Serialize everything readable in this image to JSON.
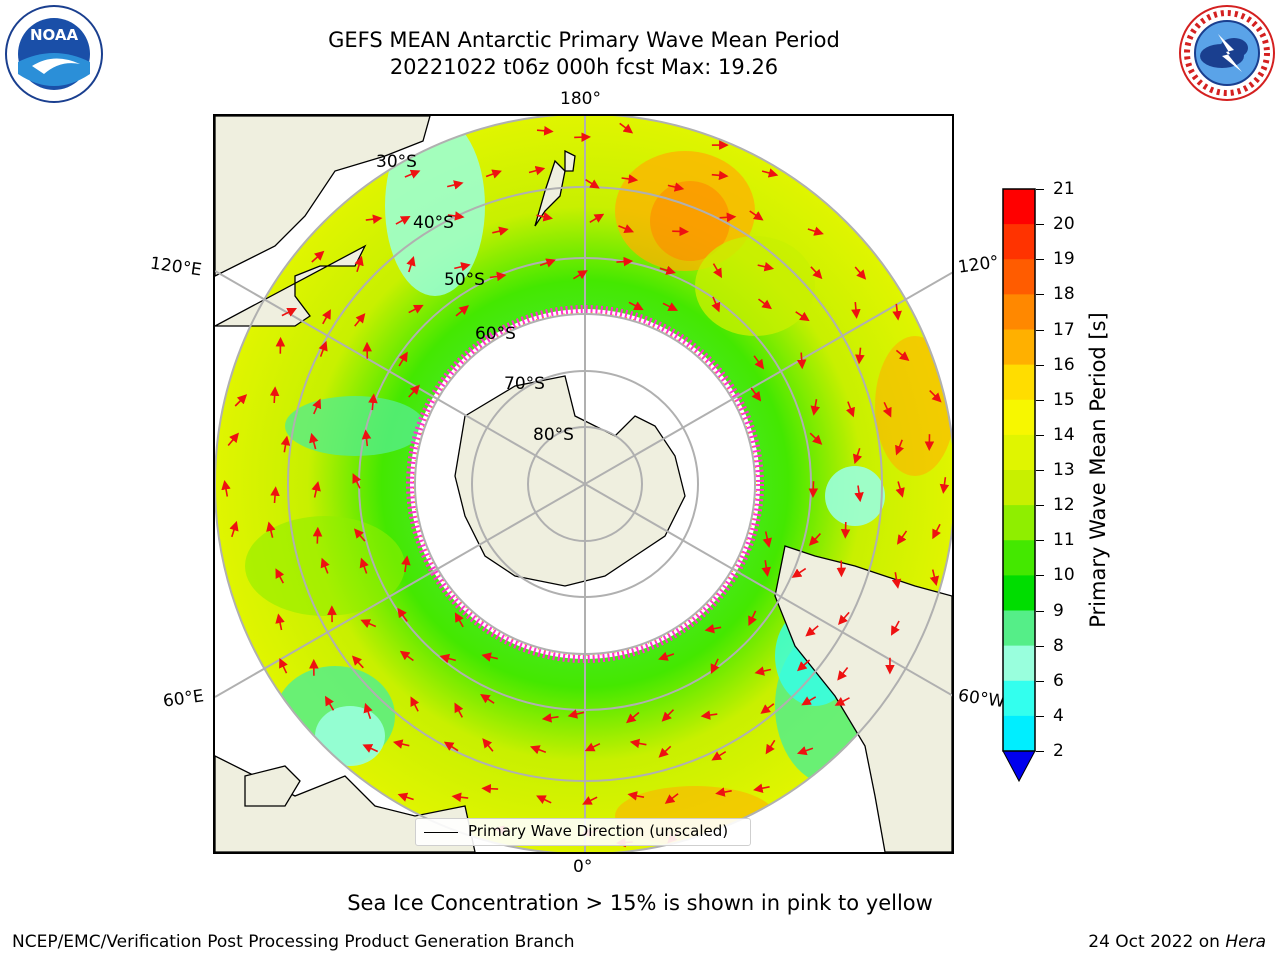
{
  "title": {
    "line1": "GEFS MEAN Antarctic Primary Wave Mean Period",
    "line2": "20221022 t06z 000h fcst   Max: 19.26"
  },
  "logos": {
    "left_text": "NOAA",
    "right_text": "NATIONAL WEATHER SERVICE"
  },
  "map": {
    "projection": "south-polar-stereographic",
    "longitude_labels": {
      "top": "180°",
      "bottom": "0°",
      "left_upper": "120°E",
      "left_lower": "60°E",
      "right_upper": "120°",
      "right_lower": "60°W"
    },
    "latitude_labels": [
      "30°S",
      "40°S",
      "50°S",
      "60°S",
      "70°S",
      "80°S"
    ],
    "land_color": "#efefdf",
    "ice_color": "#ff33cc",
    "arrow_color": "#ee1111"
  },
  "legend": {
    "label": "Primary Wave Direction (unscaled)"
  },
  "colorbar": {
    "label": "Primary Wave Mean Period [s]",
    "ticks": [
      "21",
      "20",
      "19",
      "18",
      "17",
      "16",
      "15",
      "14",
      "13",
      "12",
      "11",
      "10",
      "9",
      "8",
      "6",
      "4",
      "2"
    ],
    "colors": [
      "#ff0000",
      "#ff3300",
      "#ff5c00",
      "#ff8800",
      "#ffb000",
      "#ffdd00",
      "#f7f700",
      "#e0f500",
      "#c8f000",
      "#8fee00",
      "#44e800",
      "#00dd00",
      "#55ee88",
      "#99ffdd",
      "#33ffee",
      "#00eeff",
      "#00aaff",
      "#0066ff"
    ],
    "extend_color": "#0000ee"
  },
  "notes": {
    "sea_ice": "Sea Ice Concentration > 15% is shown in pink to yellow"
  },
  "footer": {
    "left": "NCEP/EMC/Verification Post Processing Product Generation Branch",
    "right_date": "24 Oct 2022 on ",
    "right_host": "Hera"
  }
}
